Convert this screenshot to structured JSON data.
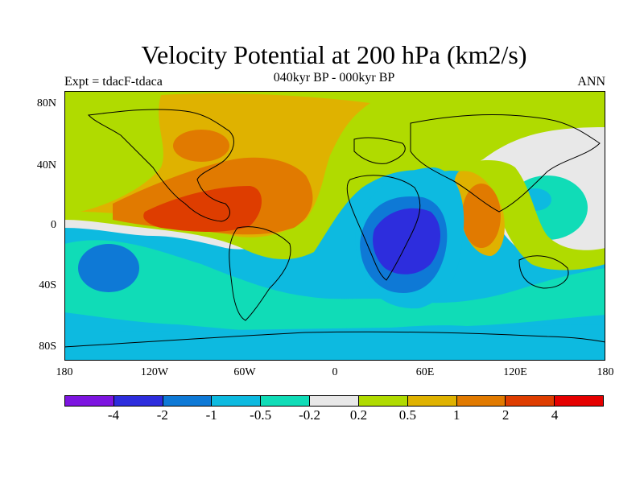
{
  "title": "Velocity Potential at 200 hPa (km2/s)",
  "subtitle": "040kyr BP - 000kyr BP",
  "left_label": "Expt = tdacF-tdaca",
  "right_label": "ANN",
  "lat_ticks": [
    "80N",
    "40N",
    "0",
    "40S",
    "80S"
  ],
  "lon_ticks": [
    "180",
    "120W",
    "60W",
    "0",
    "60E",
    "120E",
    "180"
  ],
  "colorbar": {
    "colors": [
      "#7d15e0",
      "#2d2ddd",
      "#0e79d6",
      "#0dbae0",
      "#10dcb7",
      "#e8e8e8",
      "#b0db00",
      "#dfb200",
      "#e17a00",
      "#de3d00",
      "#e50000"
    ],
    "labels": [
      "-4",
      "-2",
      "-1",
      "-0.5",
      "-0.2",
      "0.2",
      "0.5",
      "1",
      "2",
      "4"
    ]
  }
}
